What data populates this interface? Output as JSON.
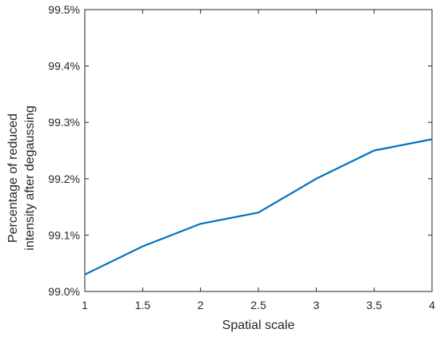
{
  "chart_data": {
    "type": "line",
    "title": "",
    "xlabel": "Spatial scale",
    "ylabel_lines": [
      "Percentage of reduced",
      "intensity after degaussing"
    ],
    "x": [
      1,
      1.5,
      2,
      2.5,
      3,
      3.5,
      4
    ],
    "series": [
      {
        "values": [
          99.03,
          99.08,
          99.12,
          99.14,
          99.2,
          99.25,
          99.27
        ],
        "color": "#0072BD"
      }
    ],
    "xlim": [
      1,
      4
    ],
    "ylim": [
      99.0,
      99.5
    ],
    "x_ticks": [
      1,
      1.5,
      2,
      2.5,
      3,
      3.5,
      4
    ],
    "x_tick_labels": [
      "1",
      "1.5",
      "2",
      "2.5",
      "3",
      "3.5",
      "4"
    ],
    "y_ticks": [
      99.0,
      99.1,
      99.2,
      99.3,
      99.4,
      99.5
    ],
    "y_tick_labels": [
      "99.0%",
      "99.1%",
      "99.2%",
      "99.3%",
      "99.4%",
      "99.5%"
    ],
    "grid": false,
    "box": true
  }
}
